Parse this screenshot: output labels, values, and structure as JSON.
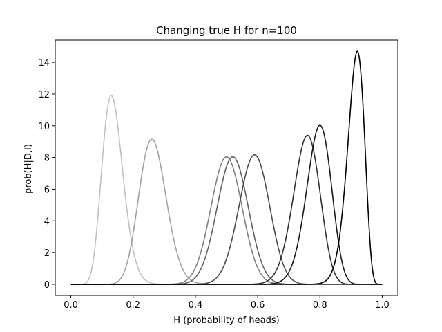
{
  "chart_data": {
    "type": "line",
    "title": "Changing true H for n=100",
    "xlabel": "H (probability of heads)",
    "ylabel": "prob(H|D,I)",
    "xlim": [
      -0.05,
      1.05
    ],
    "ylim": [
      -0.7,
      15.4
    ],
    "xticks": [
      0.0,
      0.2,
      0.4,
      0.6,
      0.8,
      1.0
    ],
    "xtick_labels": [
      "0.0",
      "0.2",
      "0.4",
      "0.6",
      "0.8",
      "1.0"
    ],
    "yticks": [
      0,
      2,
      4,
      6,
      8,
      10,
      12,
      14
    ],
    "ytick_labels": [
      "0",
      "2",
      "4",
      "6",
      "8",
      "10",
      "12",
      "14"
    ],
    "grid": false,
    "legend": "none",
    "series": [
      {
        "color": "#c0c0c0",
        "peak_x": 0.13,
        "peak_y": 11.9
      },
      {
        "color": "#a0a0a0",
        "peak_x": 0.26,
        "peak_y": 9.15
      },
      {
        "color": "#808080",
        "peak_x": 0.5,
        "peak_y": 8.03
      },
      {
        "color": "#606060",
        "peak_x": 0.52,
        "peak_y": 8.05
      },
      {
        "color": "#4a4a4a",
        "peak_x": 0.59,
        "peak_y": 8.18
      },
      {
        "color": "#303030",
        "peak_x": 0.76,
        "peak_y": 9.42
      },
      {
        "color": "#181818",
        "peak_x": 0.8,
        "peak_y": 10.05
      },
      {
        "color": "#000000",
        "peak_x": 0.92,
        "peak_y": 14.7
      }
    ]
  }
}
